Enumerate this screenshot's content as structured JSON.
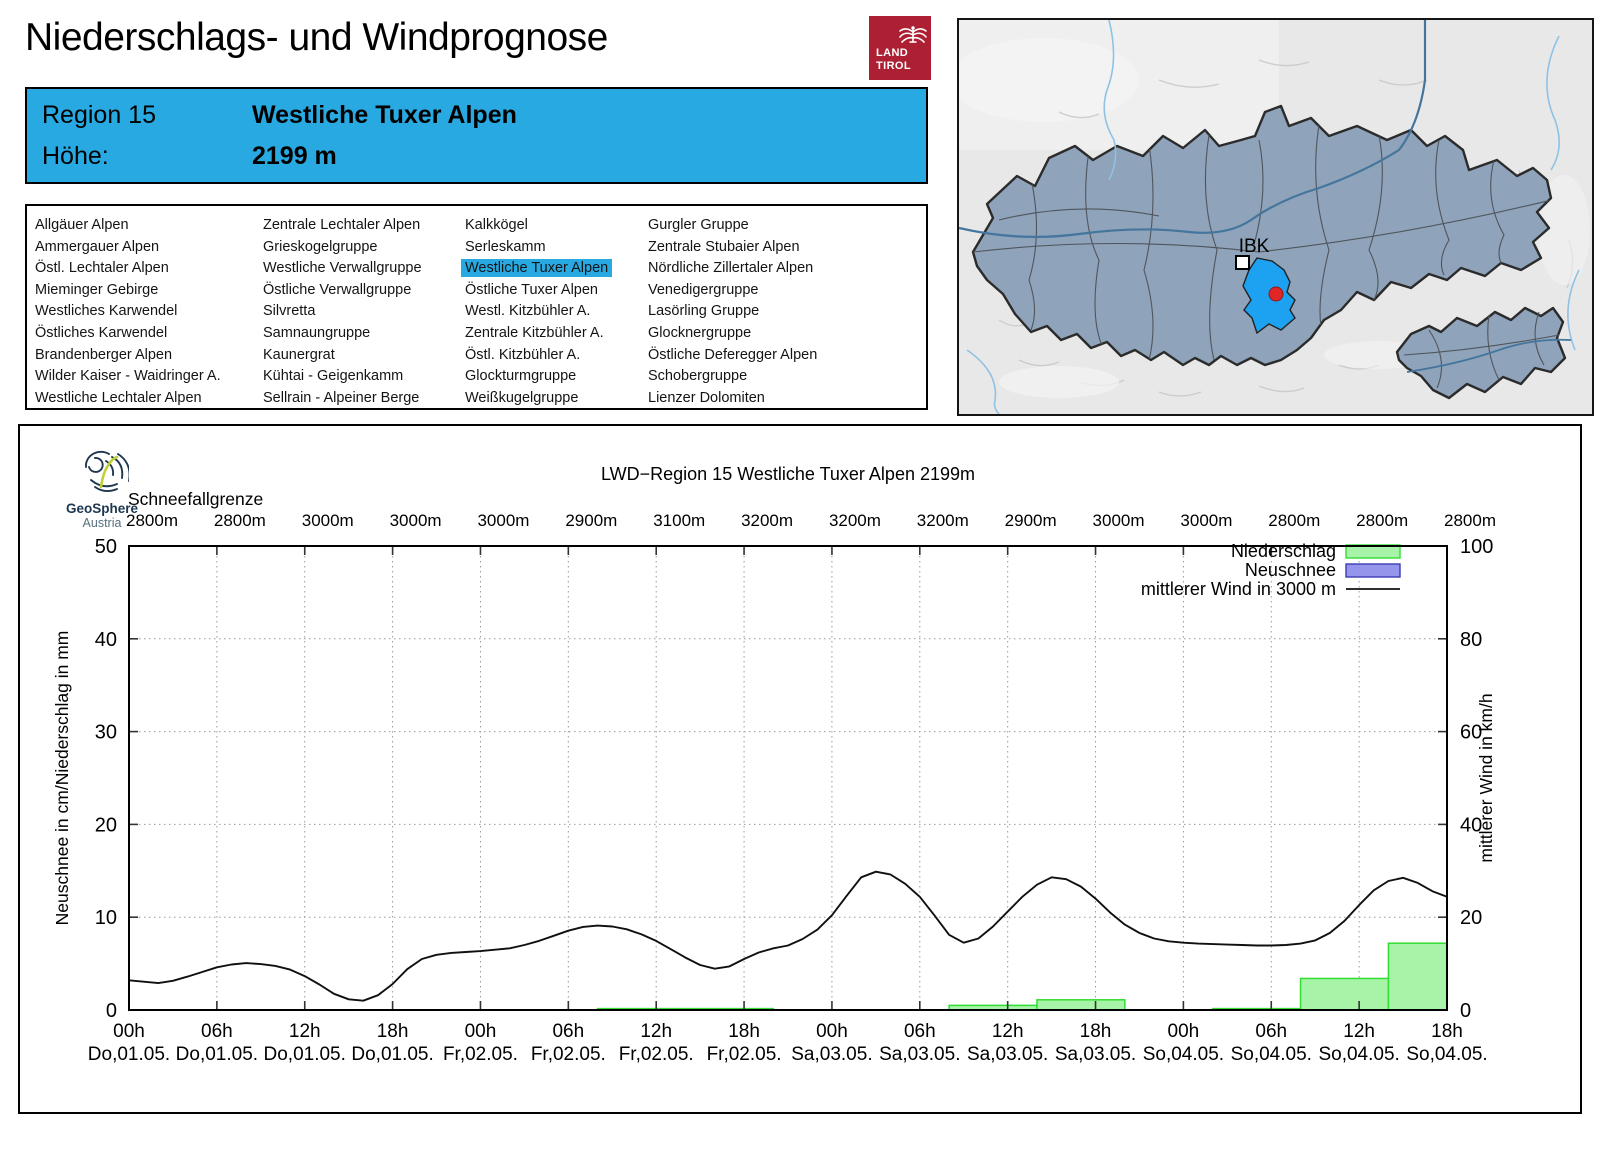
{
  "header": {
    "title": "Niederschlags- und Windprognose",
    "logo": {
      "land": "LAND",
      "tirol": "TIROL"
    }
  },
  "region_box": {
    "region_label": "Region 15",
    "region_name": "Westliche Tuxer Alpen",
    "altitude_label": "Höhe:",
    "altitude_value": "2199 m",
    "bg_color": "#29a9e2"
  },
  "region_list": {
    "selected": "Westliche Tuxer Alpen",
    "highlight_color": "#29a9e2",
    "columns": [
      [
        "Allgäuer Alpen",
        "Ammergauer Alpen",
        "Östl. Lechtaler Alpen",
        "Mieminger Gebirge",
        "Westliches Karwendel",
        "Östliches Karwendel",
        "Brandenberger Alpen",
        "Wilder Kaiser - Waidringer A.",
        "Westliche Lechtaler Alpen"
      ],
      [
        "Zentrale Lechtaler Alpen",
        "Grieskogelgruppe",
        "Westliche Verwallgruppe",
        "Östliche Verwallgruppe",
        "Silvretta",
        "Samnaungruppe",
        "Kaunergrat",
        "Kühtai - Geigenkamm",
        "Sellrain - Alpeiner Berge"
      ],
      [
        "Kalkkögel",
        "Serleskamm",
        "Westliche Tuxer Alpen",
        "Östliche Tuxer Alpen",
        "Westl. Kitzbühler A.",
        "Zentrale Kitzbühler A.",
        "Östl. Kitzbühler A.",
        "Glockturmgruppe",
        "Weißkugelgruppe"
      ],
      [
        "Gurgler Gruppe",
        "Zentrale Stubaier Alpen",
        "Nördliche Zillertaler Alpen",
        "Venedigergruppe",
        "Lasörling Gruppe",
        "Glocknergruppe",
        "Östliche Deferegger Alpen",
        "Schobergruppe",
        "Lienzer Dolomiten"
      ]
    ]
  },
  "map": {
    "marker_label": "IBK",
    "region_fill": "#8fa3ba",
    "selected_fill": "#1da2f2",
    "dot_color": "#e02626"
  },
  "geosphere": {
    "name": "GeoSphere",
    "country": "Austria"
  },
  "chart_data": {
    "type": "bar+line",
    "title": "LWD−Region 15 Westliche Tuxer Alpen 2199m",
    "snowline": {
      "label": "Schneefallgrenze",
      "values": [
        "2800m",
        "2800m",
        "3000m",
        "3000m",
        "3000m",
        "2900m",
        "3100m",
        "3200m",
        "3200m",
        "3200m",
        "2900m",
        "3000m",
        "3000m",
        "2800m",
        "2800m",
        "2800m"
      ]
    },
    "x_axis": {
      "hours_total": 90,
      "tick_interval_h": 6,
      "ticks": [
        {
          "hour": "00h",
          "date": "Do,01.05."
        },
        {
          "hour": "06h",
          "date": "Do,01.05."
        },
        {
          "hour": "12h",
          "date": "Do,01.05."
        },
        {
          "hour": "18h",
          "date": "Do,01.05."
        },
        {
          "hour": "00h",
          "date": "Fr,02.05."
        },
        {
          "hour": "06h",
          "date": "Fr,02.05."
        },
        {
          "hour": "12h",
          "date": "Fr,02.05."
        },
        {
          "hour": "18h",
          "date": "Fr,02.05."
        },
        {
          "hour": "00h",
          "date": "Sa,03.05."
        },
        {
          "hour": "06h",
          "date": "Sa,03.05."
        },
        {
          "hour": "12h",
          "date": "Sa,03.05."
        },
        {
          "hour": "18h",
          "date": "Sa,03.05."
        },
        {
          "hour": "00h",
          "date": "So,04.05."
        },
        {
          "hour": "06h",
          "date": "So,04.05."
        },
        {
          "hour": "12h",
          "date": "So,04.05."
        },
        {
          "hour": "18h",
          "date": "So,04.05."
        }
      ]
    },
    "left_axis": {
      "label": "Neuschnee in cm/Niederschlag in mm",
      "min": 0,
      "max": 50,
      "step": 10
    },
    "right_axis": {
      "label": "mittlerer Wind in km/h",
      "min": 0,
      "max": 100,
      "step": 20
    },
    "legend": [
      {
        "label": "Niederschlag",
        "type": "box",
        "fill": "#a7f3a7",
        "stroke": "#33dd33"
      },
      {
        "label": "Neuschnee",
        "type": "box",
        "fill": "#9595ec",
        "stroke": "#3c3cb4"
      },
      {
        "label": "mittlerer Wind in 3000 m",
        "type": "line",
        "stroke": "#101010"
      }
    ],
    "precipitation_mm": [
      {
        "from_h": 32,
        "to_h": 44,
        "mm": 0.15
      },
      {
        "from_h": 56,
        "to_h": 62,
        "mm": 0.5
      },
      {
        "from_h": 62,
        "to_h": 68,
        "mm": 1.1
      },
      {
        "from_h": 74,
        "to_h": 80,
        "mm": 0.15
      },
      {
        "from_h": 80,
        "to_h": 86,
        "mm": 3.4
      },
      {
        "from_h": 86,
        "to_h": 90,
        "mm": 7.2
      }
    ],
    "new_snow_cm": [],
    "wind_kmh": [
      [
        0,
        6.4
      ],
      [
        1,
        6.1
      ],
      [
        2,
        5.8
      ],
      [
        3,
        6.3
      ],
      [
        4,
        7.2
      ],
      [
        5,
        8.2
      ],
      [
        6,
        9.2
      ],
      [
        7,
        9.8
      ],
      [
        8,
        10.1
      ],
      [
        9,
        9.9
      ],
      [
        10,
        9.5
      ],
      [
        11,
        8.7
      ],
      [
        12,
        7.3
      ],
      [
        13,
        5.5
      ],
      [
        14,
        3.5
      ],
      [
        15,
        2.3
      ],
      [
        16,
        2.0
      ],
      [
        17,
        3.2
      ],
      [
        18,
        5.6
      ],
      [
        19,
        8.8
      ],
      [
        20,
        11.0
      ],
      [
        21,
        11.9
      ],
      [
        22,
        12.3
      ],
      [
        23,
        12.5
      ],
      [
        24,
        12.7
      ],
      [
        25,
        13.0
      ],
      [
        26,
        13.3
      ],
      [
        27,
        14.0
      ],
      [
        28,
        14.9
      ],
      [
        29,
        16.0
      ],
      [
        30,
        17.1
      ],
      [
        31,
        17.9
      ],
      [
        32,
        18.2
      ],
      [
        33,
        18.0
      ],
      [
        34,
        17.4
      ],
      [
        35,
        16.3
      ],
      [
        36,
        14.9
      ],
      [
        37,
        13.1
      ],
      [
        38,
        11.3
      ],
      [
        39,
        9.7
      ],
      [
        40,
        8.9
      ],
      [
        41,
        9.4
      ],
      [
        42,
        11.0
      ],
      [
        43,
        12.4
      ],
      [
        44,
        13.3
      ],
      [
        45,
        13.9
      ],
      [
        46,
        15.3
      ],
      [
        47,
        17.3
      ],
      [
        48,
        20.4
      ],
      [
        49,
        24.6
      ],
      [
        50,
        28.6
      ],
      [
        51,
        29.8
      ],
      [
        52,
        29.2
      ],
      [
        53,
        27.2
      ],
      [
        54,
        24.4
      ],
      [
        55,
        20.4
      ],
      [
        56,
        16.2
      ],
      [
        57,
        14.5
      ],
      [
        58,
        15.4
      ],
      [
        59,
        18.0
      ],
      [
        60,
        21.2
      ],
      [
        61,
        24.4
      ],
      [
        62,
        27.0
      ],
      [
        63,
        28.6
      ],
      [
        64,
        28.2
      ],
      [
        65,
        26.6
      ],
      [
        66,
        24.0
      ],
      [
        67,
        21.0
      ],
      [
        68,
        18.4
      ],
      [
        69,
        16.6
      ],
      [
        70,
        15.4
      ],
      [
        71,
        14.8
      ],
      [
        72,
        14.5
      ],
      [
        73,
        14.3
      ],
      [
        74,
        14.2
      ],
      [
        75,
        14.1
      ],
      [
        76,
        14.0
      ],
      [
        77,
        13.9
      ],
      [
        78,
        13.9
      ],
      [
        79,
        14.0
      ],
      [
        80,
        14.3
      ],
      [
        81,
        15.0
      ],
      [
        82,
        16.6
      ],
      [
        83,
        19.2
      ],
      [
        84,
        22.6
      ],
      [
        85,
        25.8
      ],
      [
        86,
        27.8
      ],
      [
        87,
        28.5
      ],
      [
        88,
        27.4
      ],
      [
        89,
        25.6
      ],
      [
        90,
        24.4
      ]
    ]
  }
}
